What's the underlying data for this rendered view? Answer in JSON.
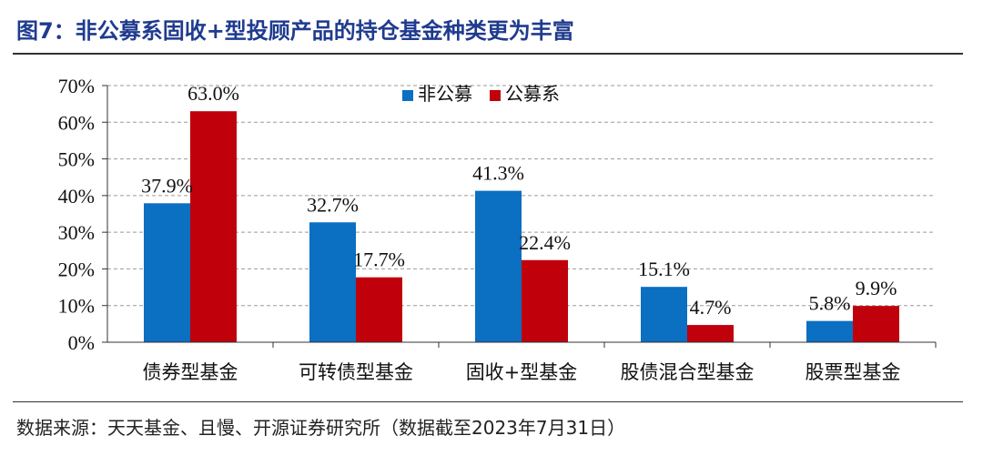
{
  "header": {
    "title": "图7：非公募系固收+型投顾产品的持仓基金种类更为丰富"
  },
  "footer": {
    "source": "数据来源：天天基金、且慢、开源证券研究所（数据截至2023年7月31日）"
  },
  "colors": {
    "series_1": "#0b6fc2",
    "series_2": "#c0000b",
    "gridline": "#9a9a9a",
    "title": "#1f3b8f"
  },
  "chart_data": {
    "type": "bar",
    "categories": [
      "债券型基金",
      "可转债型基金",
      "固收+型基金",
      "股债混合型基金",
      "股票型基金"
    ],
    "series": [
      {
        "name": "非公募",
        "values": [
          37.9,
          32.7,
          41.3,
          15.1,
          5.8
        ],
        "labels": [
          "37.9%",
          "32.7%",
          "41.3%",
          "15.1%",
          "5.8%"
        ]
      },
      {
        "name": "公募系",
        "values": [
          63.0,
          17.7,
          22.4,
          4.7,
          9.9
        ],
        "labels": [
          "63.0%",
          "17.7%",
          "22.4%",
          "4.7%",
          "9.9%"
        ]
      }
    ],
    "ylim": [
      0,
      70
    ],
    "yticks": [
      "0%",
      "10%",
      "20%",
      "30%",
      "40%",
      "50%",
      "60%",
      "70%"
    ],
    "grid": "horizontal dashed",
    "legend": "top-center"
  }
}
